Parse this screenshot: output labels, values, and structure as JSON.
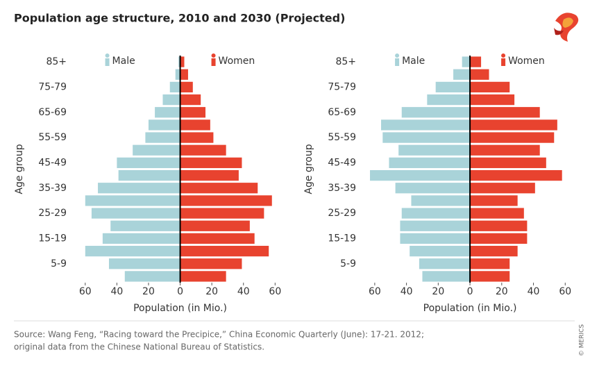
{
  "title": "Population age structure, 2010 and 2030 (Projected)",
  "source": [
    "Source: Wang Feng, “Racing toward the Precipice,” China Economic Quarterly (June): 17-21. 2012;",
    "original data from the Chinese National Bureau of Statistics."
  ],
  "credit": "© MERICS",
  "chart_data": [
    {
      "type": "bar",
      "orientation": "horizontal",
      "xlabel": "Population (in Mio.)",
      "ylabel": "Age group",
      "categories": [
        "85+",
        null,
        "75-79",
        null,
        "65-69",
        null,
        "55-59",
        null,
        "45-49",
        null,
        "35-39",
        null,
        "25-29",
        null,
        "15-19",
        null,
        "5-9",
        null
      ],
      "series": [
        {
          "name": "Male",
          "color": "#a9d3d9",
          "values": [
            -1,
            -3,
            -6.5,
            -11,
            -16,
            -20,
            -22,
            -30,
            -40,
            -39,
            -52,
            -60,
            -56,
            -44,
            -49,
            -60,
            -45,
            -35
          ]
        },
        {
          "name": "Women",
          "color": "#e8432f",
          "values": [
            2.6,
            5,
            8,
            13,
            16,
            19,
            21,
            29,
            39,
            37,
            49,
            58,
            53,
            44,
            47,
            56,
            39,
            29
          ]
        }
      ],
      "xlim": [
        -70,
        66
      ],
      "xticks": [
        {
          "value": -60,
          "label": "60"
        },
        {
          "value": -40,
          "label": "40"
        },
        {
          "value": -20,
          "label": "20"
        },
        0,
        20,
        40,
        60
      ]
    },
    {
      "type": "bar",
      "orientation": "horizontal",
      "xlabel": "Population (in Mio.)",
      "ylabel": "Age group",
      "categories": [
        "85+",
        null,
        "75-79",
        null,
        "65-69",
        null,
        "55-59",
        null,
        "45-49",
        null,
        "35-39",
        null,
        "25-29",
        null,
        "15-19",
        null,
        "5-9",
        null
      ],
      "series": [
        {
          "name": "Male",
          "color": "#a9d3d9",
          "values": [
            -5,
            -10.5,
            -21.6,
            -27,
            -43,
            -56,
            -55,
            -45,
            -51,
            -63,
            -47,
            -37,
            -43,
            -44,
            -44,
            -38,
            -32,
            -30
          ]
        },
        {
          "name": "Women",
          "color": "#e8432f",
          "values": [
            7,
            12,
            25,
            28,
            44,
            55,
            53,
            44,
            48,
            58,
            41,
            30,
            34,
            36,
            36,
            30,
            25,
            25
          ]
        }
      ],
      "xlim": [
        -70,
        66
      ],
      "xticks": [
        {
          "value": -60,
          "label": "60"
        },
        {
          "value": -40,
          "label": "40"
        },
        {
          "value": -20,
          "label": "20"
        },
        0,
        20,
        40,
        60
      ]
    }
  ]
}
